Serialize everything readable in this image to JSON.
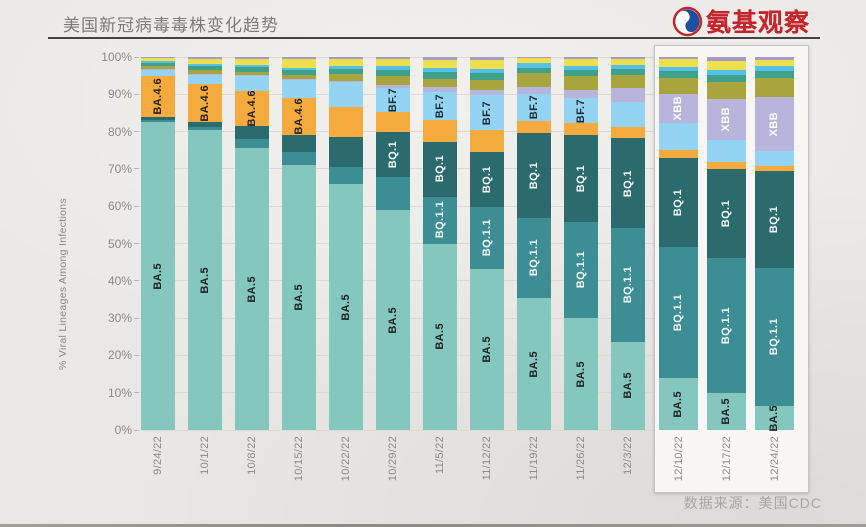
{
  "header": {
    "title": "美国新冠病毒毒株变化趋势",
    "brand": "氨基观察",
    "brand_color": "#c5242b"
  },
  "footer": {
    "source": "数据来源：美国CDC"
  },
  "chart_data": {
    "type": "bar",
    "subtype": "stacked-100-percent",
    "title": "美国新冠病毒毒株变化趋势",
    "xlabel": "",
    "ylabel": "% Viral Lineages Among Infections",
    "ylim": [
      0,
      100
    ],
    "grid": true,
    "legend_position": "none (labels drawn inside bar segments)",
    "y_ticks": [
      0,
      10,
      20,
      30,
      40,
      50,
      60,
      70,
      80,
      90,
      100
    ],
    "categories": [
      "9/24/22",
      "10/1/22",
      "10/8/22",
      "10/15/22",
      "10/22/22",
      "10/29/22",
      "11/5/22",
      "11/12/22",
      "11/19/22",
      "11/26/22",
      "12/3/22",
      "12/10/22",
      "12/17/22",
      "12/24/22"
    ],
    "highlighted_categories": [
      "12/10/22",
      "12/17/22",
      "12/24/22"
    ],
    "series": [
      {
        "key": "ba5",
        "label": "BA.5",
        "color": "#83c7bf",
        "label_color": "#222222",
        "label_on": [
          0,
          1,
          2,
          3,
          4,
          5,
          6,
          7,
          8,
          9,
          10,
          11,
          12,
          13
        ],
        "values": [
          82.5,
          80.5,
          75.5,
          71.0,
          66.0,
          59.0,
          50.0,
          43.3,
          35.4,
          29.9,
          23.7,
          14.0,
          10.0,
          6.5
        ]
      },
      {
        "key": "bq11",
        "label": "BQ.1.1",
        "color": "#3d8d95",
        "label_color": "#f2f7f7",
        "label_on": [
          6,
          7,
          8,
          9,
          10,
          11,
          12,
          13
        ],
        "values": [
          0.5,
          0.7,
          2.5,
          3.6,
          4.5,
          8.9,
          12.6,
          16.6,
          21.5,
          26.0,
          30.4,
          35.0,
          36.0,
          37.0
        ]
      },
      {
        "key": "bq1",
        "label": "BQ.1",
        "color": "#2b6a6d",
        "label_color": "#f2f7f7",
        "label_on": [
          5,
          6,
          7,
          8,
          9,
          10,
          11,
          12,
          13
        ],
        "values": [
          1.0,
          1.5,
          3.5,
          4.5,
          8.0,
          12.1,
          14.7,
          14.7,
          22.8,
          23.2,
          24.1,
          24.0,
          24.0,
          26.0
        ]
      },
      {
        "key": "ba46",
        "label": "BA.4.6",
        "color": "#f4aa3d",
        "label_color": "#222222",
        "label_on": [
          0,
          1,
          2,
          3
        ],
        "values": [
          11.0,
          10.0,
          9.5,
          9.8,
          8.0,
          5.3,
          5.8,
          5.8,
          3.2,
          3.1,
          3.1,
          2.2,
          1.8,
          1.3
        ]
      },
      {
        "key": "bf7",
        "label": "BF.7",
        "color": "#92d4f2",
        "label_color": "#1f2a33",
        "label_on": [
          5,
          6,
          7,
          8,
          9
        ],
        "values": [
          1.5,
          2.6,
          3.8,
          4.9,
          6.7,
          6.3,
          7.6,
          9.4,
          7.2,
          6.7,
          6.7,
          7.0,
          6.0,
          4.0
        ]
      },
      {
        "key": "xbb",
        "label": "XBB",
        "color": "#b9b4dc",
        "label_color": "#fbfbfd",
        "label_on": [
          11,
          12,
          13
        ],
        "values": [
          0.2,
          0.2,
          0.3,
          0.3,
          0.4,
          0.8,
          1.3,
          1.3,
          2.0,
          2.3,
          3.6,
          8.0,
          11.0,
          14.5
        ]
      },
      {
        "key": "other-olive",
        "label": null,
        "color": "#a8a53e",
        "label_color": null,
        "label_on": [],
        "values": [
          0.8,
          0.9,
          1.0,
          1.2,
          1.8,
          2.4,
          2.2,
          2.7,
          3.6,
          3.6,
          3.6,
          4.2,
          4.5,
          5.0
        ]
      },
      {
        "key": "other-green",
        "label": null,
        "color": "#3fa18c",
        "label_color": null,
        "label_on": [],
        "values": [
          1.0,
          1.1,
          1.2,
          1.2,
          1.4,
          1.7,
          1.7,
          1.8,
          1.5,
          1.8,
          1.6,
          1.8,
          2.0,
          2.0
        ]
      },
      {
        "key": "other-blue",
        "label": null,
        "color": "#56c0e6",
        "label_color": null,
        "label_on": [],
        "values": [
          0.5,
          0.6,
          0.6,
          0.7,
          0.8,
          1.0,
          1.1,
          1.3,
          1.1,
          1.1,
          1.1,
          1.2,
          1.2,
          1.2
        ]
      },
      {
        "key": "other-yellow",
        "label": null,
        "color": "#eee04d",
        "label_color": null,
        "label_on": [],
        "values": [
          0.8,
          1.5,
          1.7,
          2.2,
          1.8,
          2.0,
          2.2,
          2.3,
          1.4,
          1.9,
          1.6,
          2.0,
          2.4,
          1.8
        ]
      },
      {
        "key": "other-purple",
        "label": null,
        "color": "#a69cc6",
        "label_color": null,
        "label_on": [],
        "values": [
          0.2,
          0.4,
          0.4,
          0.6,
          0.6,
          0.5,
          0.8,
          0.8,
          0.3,
          0.4,
          0.5,
          0.6,
          1.1,
          0.7
        ]
      }
    ]
  }
}
